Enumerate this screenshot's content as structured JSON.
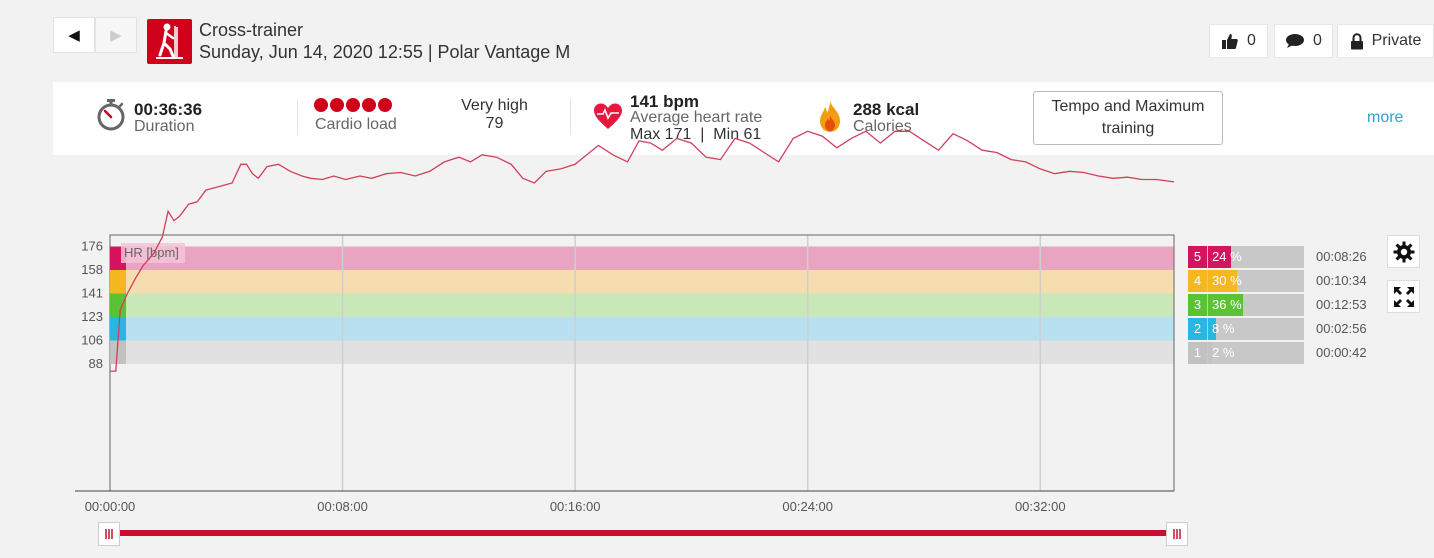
{
  "header": {
    "back_label": "◀",
    "forward_label": "▶",
    "sport_icon": "cross-trainer-icon",
    "title": "Cross-trainer",
    "subtitle": "Sunday, Jun 14, 2020 12:55 | Polar Vantage M",
    "likes": "0",
    "comments": "0",
    "privacy": "Private"
  },
  "summary": {
    "duration_value": "00:36:36",
    "duration_label": "Duration",
    "cardio_label": "Cardio load",
    "cardio_dots": 5,
    "cardio_level": "Very high",
    "cardio_value": "79",
    "hr_value": "141 bpm",
    "hr_label": "Average heart rate",
    "hr_maxmin": "Max 171  |  Min 61",
    "calories_value": "288 kcal",
    "calories_label": "Calories",
    "training_benefit": "Tempo and Maximum training",
    "more_label": "more"
  },
  "chart_data": {
    "type": "line",
    "series_label": "HR [bpm]",
    "y_ticks": [
      176,
      158,
      141,
      123,
      106,
      88
    ],
    "ylim": [
      -0.5,
      10
    ],
    "xlim_min": [
      0,
      36.6
    ],
    "x_tick_labels": [
      "00:00:00",
      "00:08:00",
      "00:16:00",
      "00:24:00",
      "00:32:00"
    ],
    "x_tick_values_min": [
      0,
      8,
      16,
      24,
      32
    ],
    "zones": [
      {
        "zone": "5",
        "from": 158,
        "to": 176,
        "color": "#e8a4c0",
        "swatch": "#d6135e",
        "percent": 24,
        "label": "24 %",
        "time": "00:08:26"
      },
      {
        "zone": "4",
        "from": 141,
        "to": 158,
        "color": "#f5ddb0",
        "swatch": "#f5b820",
        "percent": 30,
        "label": "30 %",
        "time": "00:10:34"
      },
      {
        "zone": "3",
        "from": 123,
        "to": 141,
        "color": "#c9e8b8",
        "swatch": "#5bc236",
        "percent": 36,
        "label": "36 %",
        "time": "00:12:53"
      },
      {
        "zone": "2",
        "from": 106,
        "to": 123,
        "color": "#b8e0f0",
        "swatch": "#2ab6e3",
        "percent": 8,
        "label": "8 %",
        "time": "00:02:56"
      },
      {
        "zone": "1",
        "from": 88,
        "to": 106,
        "color": "#e1e1e1",
        "swatch": "#c2c2c2",
        "percent": 2,
        "label": "2 %",
        "time": "00:00:42"
      }
    ],
    "x_min": [
      0,
      0.2,
      0.35,
      0.6,
      0.9,
      1.15,
      1.5,
      1.8,
      2.0,
      2.2,
      2.4,
      2.7,
      3.0,
      3.3,
      3.6,
      3.9,
      4.2,
      4.5,
      4.7,
      4.9,
      5.1,
      5.4,
      5.8,
      6.2,
      6.6,
      6.9,
      7.3,
      7.7,
      8.1,
      8.6,
      9.0,
      9.5,
      10.0,
      10.5,
      11.0,
      11.5,
      12.0,
      12.4,
      12.8,
      13.3,
      13.8,
      14.2,
      14.6,
      15.0,
      15.5,
      16.0,
      16.4,
      16.8,
      17.3,
      17.8,
      18.2,
      18.6,
      19.0,
      19.5,
      20.0,
      20.5,
      21.0,
      21.5,
      22.0,
      22.5,
      23.0,
      23.5,
      24.0,
      24.5,
      25.0,
      25.5,
      26.0,
      26.5,
      27.0,
      27.5,
      28.0,
      28.5,
      29.0,
      29.5,
      30.0,
      30.5,
      31.0,
      31.5,
      32.0,
      32.5,
      33.0,
      33.5,
      34.0,
      34.5,
      35.0,
      35.5,
      36.0,
      36.6
    ],
    "y_zone": [
      -0.3,
      -0.3,
      2.3,
      3.0,
      3.7,
      4.2,
      4.7,
      5.4,
      6.5,
      6.1,
      6.3,
      6.8,
      6.9,
      7.4,
      7.5,
      7.6,
      7.7,
      8.5,
      8.5,
      8.1,
      7.9,
      8.4,
      8.5,
      8.2,
      8.0,
      7.9,
      7.85,
      8.0,
      7.85,
      8.0,
      7.9,
      8.1,
      8.15,
      8.0,
      8.2,
      8.6,
      8.8,
      8.6,
      8.9,
      8.8,
      8.5,
      7.9,
      7.7,
      8.2,
      8.3,
      8.5,
      8.9,
      9.3,
      8.9,
      8.6,
      9.5,
      9.4,
      9.1,
      9.6,
      9.4,
      8.8,
      8.7,
      9.6,
      9.4,
      9.0,
      8.6,
      9.6,
      9.9,
      9.7,
      9.2,
      9.6,
      9.9,
      9.4,
      9.9,
      9.9,
      9.5,
      9.1,
      9.8,
      9.5,
      9.1,
      9.0,
      8.7,
      8.6,
      8.3,
      8.1,
      8.2,
      8.15,
      8.0,
      7.9,
      7.95,
      7.85,
      7.85,
      7.75
    ]
  },
  "controls": {
    "settings_icon": "gear-icon",
    "fullscreen_icon": "fullscreen-icon"
  }
}
